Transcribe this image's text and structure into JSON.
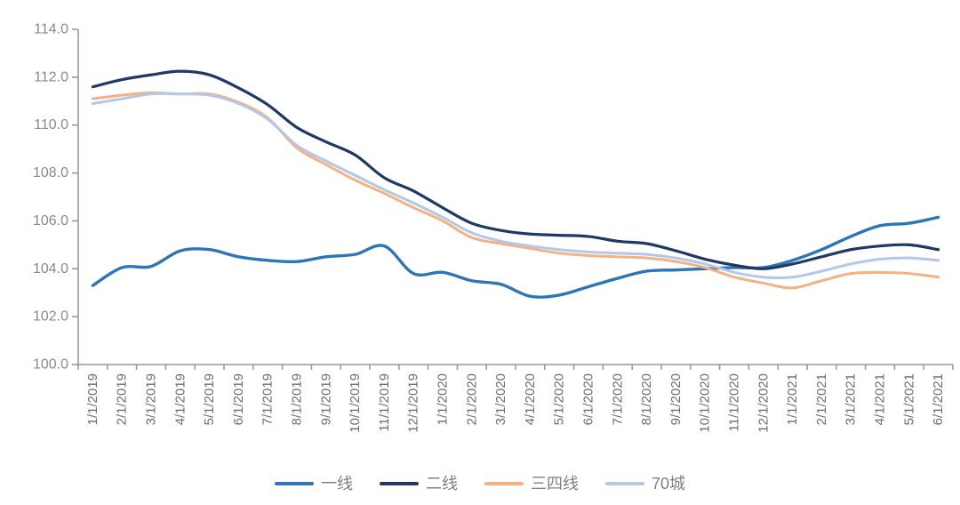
{
  "chart_data": {
    "type": "line",
    "title": "",
    "xlabel": "",
    "ylabel": "",
    "x": [
      "1/1/2019",
      "2/1/2019",
      "3/1/2019",
      "4/1/2019",
      "5/1/2019",
      "6/1/2019",
      "7/1/2019",
      "8/1/2019",
      "9/1/2019",
      "10/1/2019",
      "11/1/2019",
      "12/1/2019",
      "1/1/2020",
      "2/1/2020",
      "3/1/2020",
      "4/1/2020",
      "5/1/2020",
      "6/1/2020",
      "7/1/2020",
      "8/1/2020",
      "9/1/2020",
      "10/1/2020",
      "11/1/2020",
      "12/1/2020",
      "1/1/2021",
      "2/1/2021",
      "3/1/2021",
      "4/1/2021",
      "5/1/2021",
      "6/1/2021"
    ],
    "series": [
      {
        "key": "tier1",
        "name": "一线",
        "color": "#2E75B6",
        "stroke_width": 3.4,
        "values": [
          103.3,
          104.05,
          104.1,
          104.75,
          104.8,
          104.5,
          104.35,
          104.3,
          104.5,
          104.6,
          104.95,
          103.8,
          103.85,
          103.5,
          103.35,
          102.85,
          102.9,
          103.25,
          103.6,
          103.9,
          103.95,
          104.0,
          104.05,
          104.05,
          104.35,
          104.8,
          105.35,
          105.8,
          105.9,
          106.15
        ]
      },
      {
        "key": "tier2",
        "name": "二线",
        "color": "#1F3864",
        "stroke_width": 3.2,
        "values": [
          111.6,
          111.9,
          112.1,
          112.25,
          112.1,
          111.55,
          110.85,
          109.9,
          109.3,
          108.75,
          107.8,
          107.25,
          106.55,
          105.9,
          105.6,
          105.45,
          105.4,
          105.35,
          105.15,
          105.05,
          104.75,
          104.4,
          104.15,
          104.0,
          104.2,
          104.5,
          104.8,
          104.95,
          105.0,
          104.8
        ]
      },
      {
        "key": "tier34",
        "name": "三四线",
        "color": "#F4B183",
        "stroke_width": 3.0,
        "values": [
          111.1,
          111.25,
          111.35,
          111.3,
          111.3,
          110.95,
          110.3,
          109.05,
          108.35,
          107.7,
          107.15,
          106.55,
          106.0,
          105.3,
          105.05,
          104.85,
          104.65,
          104.55,
          104.5,
          104.45,
          104.3,
          104.05,
          103.65,
          103.4,
          103.2,
          103.5,
          103.8,
          103.85,
          103.8,
          103.65
        ]
      },
      {
        "key": "cities70",
        "name": "70城",
        "color": "#B4C7E7",
        "stroke_width": 3.0,
        "values": [
          110.9,
          111.1,
          111.3,
          111.3,
          111.25,
          110.9,
          110.25,
          109.15,
          108.5,
          107.9,
          107.3,
          106.75,
          106.15,
          105.5,
          105.15,
          104.95,
          104.8,
          104.7,
          104.65,
          104.6,
          104.45,
          104.2,
          103.85,
          103.65,
          103.65,
          103.9,
          104.2,
          104.4,
          104.45,
          104.35
        ]
      }
    ],
    "ylim": [
      100,
      114
    ],
    "ytick_step": 2,
    "ytick_labels": [
      "100.0",
      "102.0",
      "104.0",
      "106.0",
      "108.0",
      "110.0",
      "112.0",
      "114.0"
    ],
    "grid": false,
    "legend_position": "bottom",
    "x_label_rotation": -90
  },
  "style": {
    "background": "#FFFFFF",
    "axis_color": "#999999",
    "ytick_label_color": "#8A8A8A",
    "xtick_label_color": "#6E6E6E",
    "legend_text_color": "#808080"
  }
}
